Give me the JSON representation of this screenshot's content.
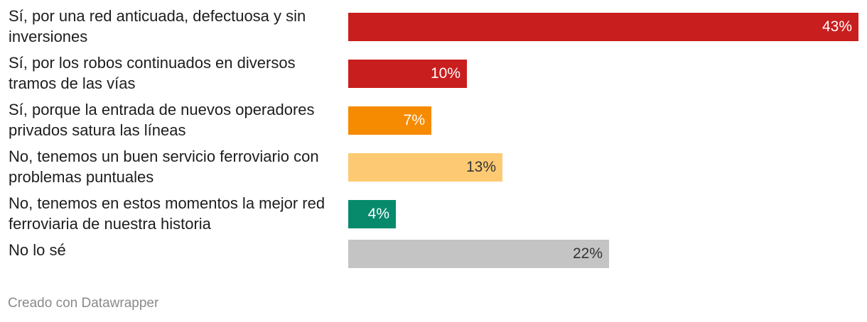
{
  "chart_data": {
    "type": "bar",
    "orientation": "horizontal",
    "categories": [
      "Sí, por una red anticuada, defectuosa y sin inversiones",
      "Sí, por los robos continuados en diversos tramos de las vías",
      "Sí, porque la entrada de nuevos operadores privados satura las líneas",
      "No, tenemos un buen servicio ferroviario con problemas puntuales",
      "No, tenemos en estos momentos la mejor red ferroviaria de nuestra historia",
      "No lo sé"
    ],
    "values": [
      43,
      10,
      7,
      13,
      4,
      22
    ],
    "value_labels": [
      "43%",
      "10%",
      "7%",
      "13%",
      "4%",
      "22%"
    ],
    "colors": [
      "#c91e1e",
      "#c91e1e",
      "#f68a00",
      "#fdca73",
      "#078a6c",
      "#c4c4c4"
    ],
    "label_colors": [
      "#ffffff",
      "#ffffff",
      "#ffffff",
      "#333333",
      "#ffffff",
      "#333333"
    ],
    "xlim": [
      0,
      43
    ],
    "unit": "%"
  },
  "footer": {
    "credit": "Creado con Datawrapper"
  }
}
